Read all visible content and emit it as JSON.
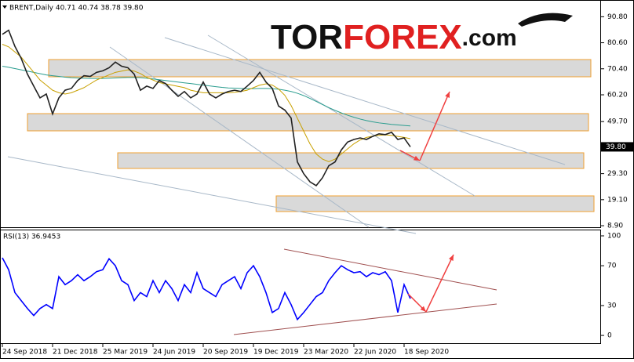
{
  "chart_data": [
    {
      "type": "line",
      "title": "BRENT,Daily  40.71 40.74 38.78 39.80",
      "logo": "TOR",
      "logo_accent": "FOREX",
      "logo_suffix": ".com",
      "ylim": [
        8.3,
        97.05
      ],
      "yticks": [
        {
          "value": 8.9,
          "label": "8.90"
        },
        {
          "value": 19.1,
          "label": "19.10"
        },
        {
          "value": 29.3,
          "label": "29.30"
        },
        {
          "value": 49.7,
          "label": "49.70"
        },
        {
          "value": 60.2,
          "label": "60.20"
        },
        {
          "value": 70.4,
          "label": "70.40"
        },
        {
          "value": 80.6,
          "label": "80.60"
        },
        {
          "value": 90.8,
          "label": "90.80"
        }
      ],
      "price_label": {
        "value": 39.8,
        "label": "39.80"
      },
      "series": [
        {
          "color": "#222222",
          "values": [
            83.9,
            85.5,
            79.2,
            74.5,
            68.3,
            63.6,
            59,
            60.5,
            52.7,
            59,
            62,
            62.7,
            65.8,
            67.7,
            67.4,
            69,
            69.6,
            70.8,
            73,
            71.4,
            70.8,
            68.3,
            62,
            63.6,
            62.7,
            65.8,
            64.6,
            62,
            59.6,
            61.5,
            59,
            60.5,
            65.2,
            60.5,
            59,
            60.5,
            61.5,
            62,
            61.5,
            63.6,
            65.8,
            69,
            65.2,
            62.7,
            55.8,
            54.2,
            51.1,
            33.9,
            29.3,
            26.1,
            24.6,
            27.7,
            32.4,
            33.9,
            38.6,
            41.7,
            42.7,
            43.3,
            42.7,
            43.9,
            44.9,
            44.6,
            45.5,
            42.7,
            43.3,
            39.8
          ]
        },
        {
          "color": "#c8a000",
          "values": [
            80,
            79,
            77,
            75,
            72,
            69,
            66,
            64,
            62,
            61,
            60.5,
            61,
            62,
            63,
            64.5,
            66,
            67,
            68,
            69,
            69.5,
            70,
            69.5,
            68.5,
            67,
            66,
            65,
            64.5,
            64,
            63.5,
            63,
            62,
            61.5,
            61,
            61,
            61,
            61,
            61,
            61.2,
            61.5,
            62,
            63,
            64,
            64.5,
            64,
            62.5,
            60,
            56,
            51,
            46,
            41,
            37,
            35,
            34,
            35,
            37,
            39,
            41,
            42.5,
            43.5,
            44,
            44.3,
            44.5,
            44.3,
            43.9,
            43.5,
            43
          ]
        },
        {
          "color": "#2a9d8f",
          "values": [
            71.4,
            71,
            70.5,
            70,
            69.5,
            69,
            68.5,
            68,
            67.7,
            67.4,
            67.1,
            66.9,
            66.8,
            66.7,
            66.6,
            66.6,
            66.6,
            66.7,
            66.8,
            66.9,
            67,
            67,
            66.9,
            66.7,
            66.4,
            66.1,
            65.8,
            65.5,
            65.2,
            64.9,
            64.6,
            64.3,
            64,
            63.7,
            63.4,
            63.1,
            62.9,
            62.8,
            62.7,
            62.6,
            62.6,
            62.7,
            62.7,
            62.6,
            62.4,
            62,
            61.5,
            60.8,
            59.9,
            58.8,
            57.6,
            56.4,
            55.2,
            54.1,
            53.1,
            52.2,
            51.4,
            50.7,
            50.1,
            49.6,
            49.2,
            48.9,
            48.6,
            48.4,
            48.2,
            48
          ]
        }
      ]
    },
    {
      "type": "line",
      "title": "RSI(13) 36.9453",
      "ylim": [
        -7.8,
        105.5
      ],
      "yticks": [
        0,
        30,
        70,
        100
      ],
      "categories": [
        "24 Sep 2018",
        null,
        null,
        null,
        null,
        null,
        null,
        null,
        "21 Dec 2018",
        null,
        null,
        null,
        null,
        null,
        null,
        null,
        "25 Mar 2019",
        null,
        null,
        null,
        null,
        null,
        null,
        null,
        "24 Jun 2019",
        null,
        null,
        null,
        null,
        null,
        null,
        null,
        "20 Sep 2019",
        null,
        null,
        null,
        null,
        null,
        null,
        null,
        "19 Dec 2019",
        null,
        null,
        null,
        null,
        null,
        null,
        null,
        "23 Mar 2020",
        null,
        null,
        null,
        null,
        null,
        null,
        null,
        "22 Jun 2020",
        null,
        null,
        null,
        null,
        null,
        null,
        null,
        "18 Sep 2020",
        null
      ],
      "series": [
        {
          "color": "#0000ff",
          "values": [
            78,
            66,
            43,
            35,
            27,
            20,
            27,
            31,
            27,
            59,
            51,
            55,
            61,
            55,
            59,
            64,
            66,
            77,
            70,
            55,
            51,
            35,
            43,
            39,
            55,
            43,
            55,
            47,
            35,
            51,
            43,
            63,
            47,
            43,
            39,
            51,
            55,
            59,
            47,
            63,
            70,
            59,
            43,
            23,
            27,
            43,
            31,
            16,
            23,
            31,
            39,
            43,
            55,
            63,
            70,
            66,
            63,
            64,
            59,
            63,
            61,
            64,
            55,
            23,
            51,
            36.9453
          ]
        }
      ]
    }
  ]
}
